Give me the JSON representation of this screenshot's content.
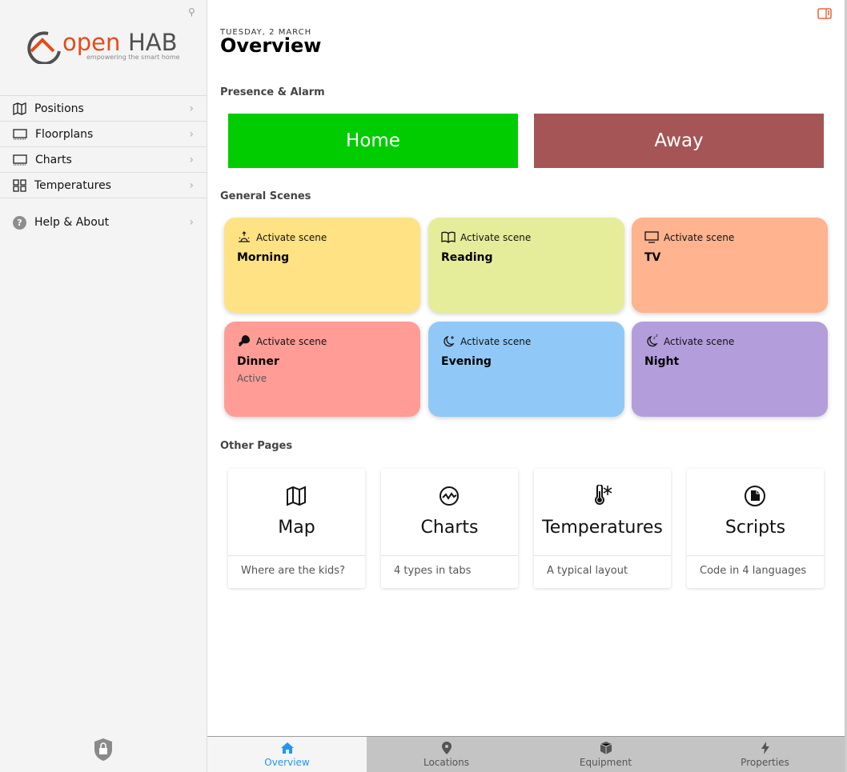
{
  "sidebar": {
    "logo": {
      "text_open": "open",
      "text_hab": "HAB",
      "tagline": "empowering the smart home"
    },
    "items": [
      {
        "label": "Positions",
        "icon": "map-icon"
      },
      {
        "label": "Floorplans",
        "icon": "floorplan-icon"
      },
      {
        "label": "Charts",
        "icon": "chart-icon"
      },
      {
        "label": "Temperatures",
        "icon": "grid-icon"
      }
    ],
    "help": {
      "label": "Help & About",
      "icon": "help-icon"
    }
  },
  "header": {
    "date": "TUESDAY, 2 MARCH",
    "title": "Overview"
  },
  "sections": {
    "presence": "Presence & Alarm",
    "scenes": "General Scenes",
    "pages": "Other Pages"
  },
  "presence": {
    "home": {
      "label": "Home",
      "color": "#00cc00"
    },
    "away": {
      "label": "Away",
      "color": "#a55555"
    }
  },
  "scenes": [
    {
      "action": "Activate scene",
      "name": "Morning",
      "status": "",
      "color": "#ffe283",
      "icon": "sunrise-icon"
    },
    {
      "action": "Activate scene",
      "name": "Reading",
      "status": "",
      "color": "#e6ed9a",
      "icon": "book-icon"
    },
    {
      "action": "Activate scene",
      "name": "TV",
      "status": "",
      "color": "#ffb38f",
      "icon": "tv-icon"
    },
    {
      "action": "Activate scene",
      "name": "Dinner",
      "status": "Active",
      "color": "#ff9c96",
      "icon": "drumstick-icon"
    },
    {
      "action": "Activate scene",
      "name": "Evening",
      "status": "",
      "color": "#90c9f7",
      "icon": "moon-stars-icon"
    },
    {
      "action": "Activate scene",
      "name": "Night",
      "status": "",
      "color": "#b39ddb",
      "icon": "moon-zzz-icon"
    }
  ],
  "pages": [
    {
      "title": "Map",
      "footer": "Where are the kids?",
      "icon": "map-icon"
    },
    {
      "title": "Charts",
      "footer": "4 types in tabs",
      "icon": "chart-circle-icon"
    },
    {
      "title": "Temperatures",
      "footer": "A typical layout",
      "icon": "thermometer-snow-icon"
    },
    {
      "title": "Scripts",
      "footer": "Code in 4 languages",
      "icon": "script-icon"
    }
  ],
  "tabs": [
    {
      "label": "Overview",
      "active": true
    },
    {
      "label": "Locations"
    },
    {
      "label": "Equipment"
    },
    {
      "label": "Properties"
    }
  ],
  "colors": {
    "accent": "#2196f3",
    "brand": "#e64a19"
  }
}
